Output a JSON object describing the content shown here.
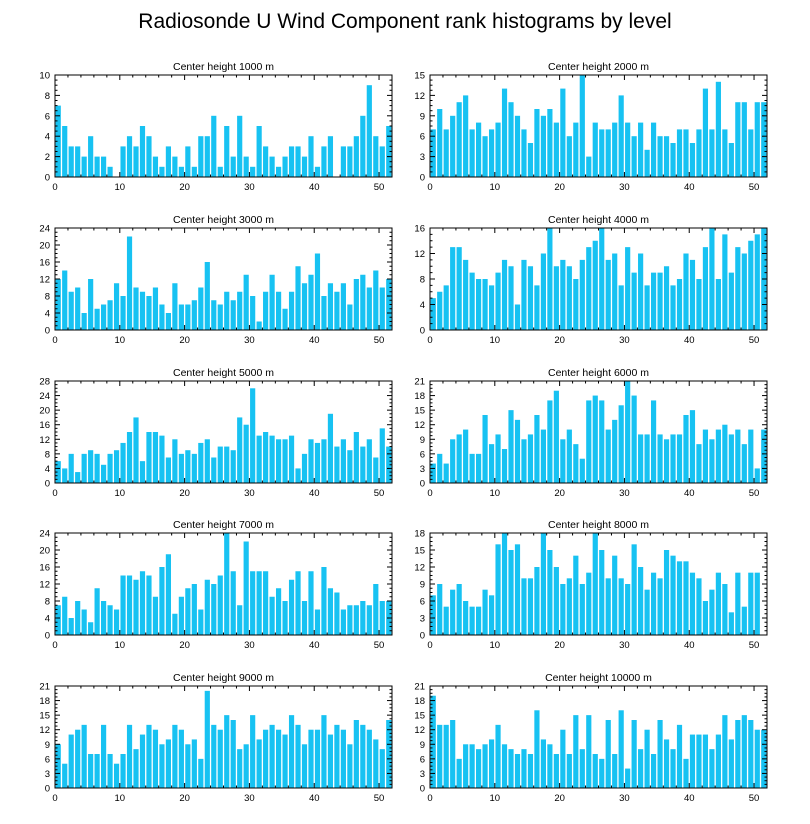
{
  "title": "Radiosonde U Wind Component rank histograms by level",
  "colors": {
    "bar": "#17c2f2",
    "axis": "#000000"
  },
  "chart_data": [
    {
      "type": "bar",
      "title": "Center height 1000 m",
      "ylim": [
        0,
        10
      ],
      "yticks": [
        0,
        2,
        4,
        6,
        8,
        10
      ],
      "xlim": [
        0,
        52
      ],
      "xticks": [
        0,
        10,
        20,
        30,
        40,
        50
      ],
      "values": [
        7,
        5,
        3,
        3,
        2,
        4,
        2,
        2,
        1,
        0,
        3,
        4,
        3,
        5,
        4,
        2,
        1,
        3,
        2,
        1,
        3,
        1,
        4,
        4,
        6,
        1,
        5,
        2,
        6,
        2,
        1,
        5,
        3,
        2,
        1,
        2,
        3,
        3,
        2,
        4,
        1,
        3,
        4,
        0,
        3,
        3,
        4,
        6,
        9,
        4,
        3,
        5
      ]
    },
    {
      "type": "bar",
      "title": "Center height 2000 m",
      "ylim": [
        0,
        15
      ],
      "yticks": [
        0,
        3,
        6,
        9,
        12,
        15
      ],
      "xlim": [
        0,
        52
      ],
      "xticks": [
        0,
        10,
        20,
        30,
        40,
        50
      ],
      "values": [
        7,
        10,
        7,
        9,
        11,
        12,
        7,
        8,
        6,
        7,
        8,
        13,
        11,
        9,
        7,
        5,
        10,
        9,
        10,
        8,
        13,
        6,
        8,
        15,
        3,
        8,
        7,
        7,
        8,
        12,
        8,
        6,
        8,
        4,
        8,
        6,
        6,
        5,
        7,
        7,
        5,
        7,
        13,
        7,
        14,
        7,
        5,
        11,
        11,
        7,
        11,
        11
      ]
    },
    {
      "type": "bar",
      "title": "Center height 3000 m",
      "ylim": [
        0,
        24
      ],
      "yticks": [
        0,
        4,
        8,
        12,
        16,
        20,
        24
      ],
      "xlim": [
        0,
        52
      ],
      "xticks": [
        0,
        10,
        20,
        30,
        40,
        50
      ],
      "values": [
        12,
        14,
        9,
        10,
        4,
        12,
        5,
        6,
        7,
        11,
        8,
        22,
        10,
        9,
        8,
        10,
        6,
        4,
        11,
        6,
        6,
        7,
        10,
        16,
        7,
        6,
        9,
        7,
        9,
        13,
        8,
        2,
        9,
        13,
        9,
        5,
        9,
        15,
        11,
        13,
        18,
        8,
        11,
        9,
        11,
        6,
        12,
        13,
        10,
        14,
        10,
        12
      ]
    },
    {
      "type": "bar",
      "title": "Center height 4000 m",
      "ylim": [
        0,
        16
      ],
      "yticks": [
        0,
        4,
        8,
        12,
        16
      ],
      "xlim": [
        0,
        52
      ],
      "xticks": [
        0,
        10,
        20,
        30,
        40,
        50
      ],
      "values": [
        5,
        6,
        7,
        13,
        13,
        11,
        9,
        8,
        8,
        7,
        9,
        11,
        10,
        4,
        11,
        10,
        7,
        12,
        16,
        10,
        11,
        10,
        8,
        11,
        13,
        14,
        18,
        11,
        12,
        7,
        13,
        9,
        12,
        7,
        9,
        9,
        10,
        7,
        8,
        12,
        11,
        8,
        13,
        17,
        8,
        15,
        9,
        13,
        12,
        14,
        15,
        17
      ]
    },
    {
      "type": "bar",
      "title": "Center height 5000 m",
      "ylim": [
        0,
        28
      ],
      "yticks": [
        0,
        4,
        8,
        12,
        16,
        20,
        24,
        28
      ],
      "xlim": [
        0,
        52
      ],
      "xticks": [
        0,
        10,
        20,
        30,
        40,
        50
      ],
      "values": [
        6,
        4,
        8,
        3,
        8,
        9,
        8,
        5,
        8,
        9,
        11,
        14,
        18,
        6,
        14,
        14,
        13,
        7,
        12,
        8,
        9,
        8,
        11,
        12,
        7,
        10,
        10,
        9,
        18,
        16,
        26,
        13,
        14,
        13,
        12,
        12,
        13,
        4,
        8,
        12,
        11,
        12,
        19,
        10,
        12,
        9,
        14,
        10,
        12,
        7,
        15,
        10
      ]
    },
    {
      "type": "bar",
      "title": "Center height 6000 m",
      "ylim": [
        0,
        21
      ],
      "yticks": [
        0,
        3,
        6,
        9,
        12,
        15,
        18,
        21
      ],
      "xlim": [
        0,
        52
      ],
      "xticks": [
        0,
        10,
        20,
        30,
        40,
        50
      ],
      "values": [
        4,
        6,
        4,
        9,
        10,
        11,
        6,
        6,
        14,
        8,
        10,
        7,
        15,
        13,
        9,
        10,
        14,
        11,
        17,
        19,
        9,
        11,
        8,
        5,
        17,
        18,
        17,
        11,
        13,
        16,
        21,
        18,
        10,
        10,
        17,
        10,
        9,
        10,
        10,
        14,
        15,
        8,
        11,
        9,
        11,
        12,
        10,
        11,
        8,
        11,
        3,
        11
      ]
    },
    {
      "type": "bar",
      "title": "Center height 7000 m",
      "ylim": [
        0,
        24
      ],
      "yticks": [
        0,
        4,
        8,
        12,
        16,
        20,
        24
      ],
      "xlim": [
        0,
        52
      ],
      "xticks": [
        0,
        10,
        20,
        30,
        40,
        50
      ],
      "values": [
        7,
        9,
        4,
        8,
        6,
        3,
        11,
        8,
        7,
        6,
        14,
        14,
        13,
        15,
        14,
        9,
        16,
        19,
        5,
        9,
        11,
        12,
        6,
        13,
        12,
        14,
        24,
        15,
        7,
        22,
        15,
        15,
        15,
        9,
        11,
        8,
        13,
        15,
        8,
        15,
        6,
        16,
        11,
        10,
        6,
        7,
        7,
        8,
        7,
        12,
        8,
        8
      ]
    },
    {
      "type": "bar",
      "title": "Center height 8000 m",
      "ylim": [
        0,
        18
      ],
      "yticks": [
        0,
        3,
        6,
        9,
        12,
        15,
        18
      ],
      "xlim": [
        0,
        52
      ],
      "xticks": [
        0,
        10,
        20,
        30,
        40,
        50
      ],
      "values": [
        7,
        9,
        5,
        8,
        9,
        6,
        5,
        5,
        8,
        7,
        16,
        18,
        15,
        16,
        10,
        10,
        12,
        18,
        15,
        12,
        9,
        10,
        14,
        9,
        11,
        18,
        15,
        10,
        14,
        10,
        9,
        16,
        12,
        8,
        11,
        10,
        15,
        14,
        13,
        13,
        11,
        10,
        6,
        8,
        11,
        9,
        4,
        11,
        5,
        11,
        11
      ]
    },
    {
      "type": "bar",
      "title": "Center height 9000 m",
      "ylim": [
        0,
        21
      ],
      "yticks": [
        0,
        3,
        6,
        9,
        12,
        15,
        18,
        21
      ],
      "xlim": [
        0,
        52
      ],
      "xticks": [
        0,
        10,
        20,
        30,
        40,
        50
      ],
      "values": [
        9,
        5,
        11,
        12,
        13,
        7,
        7,
        13,
        7,
        5,
        7,
        13,
        8,
        11,
        13,
        12,
        9,
        10,
        13,
        12,
        9,
        10,
        6,
        20,
        13,
        12,
        15,
        14,
        8,
        9,
        15,
        10,
        12,
        13,
        12,
        11,
        15,
        13,
        9,
        12,
        12,
        15,
        11,
        13,
        12,
        9,
        14,
        13,
        12,
        10,
        8,
        14
      ]
    },
    {
      "type": "bar",
      "title": "Center height 10000 m",
      "ylim": [
        0,
        21
      ],
      "yticks": [
        0,
        3,
        6,
        9,
        12,
        15,
        18,
        21
      ],
      "xlim": [
        0,
        52
      ],
      "xticks": [
        0,
        10,
        20,
        30,
        40,
        50
      ],
      "values": [
        19,
        13,
        13,
        14,
        6,
        9,
        9,
        8,
        9,
        10,
        13,
        9,
        8,
        7,
        8,
        7,
        16,
        10,
        9,
        7,
        12,
        7,
        15,
        8,
        15,
        7,
        6,
        14,
        7,
        16,
        4,
        14,
        8,
        12,
        7,
        14,
        10,
        8,
        13,
        6,
        11,
        11,
        11,
        8,
        11,
        15,
        10,
        14,
        15,
        14,
        12,
        12
      ]
    }
  ]
}
